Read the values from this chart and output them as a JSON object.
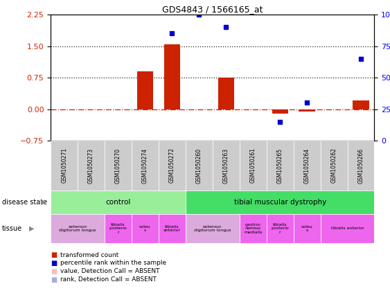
{
  "title": "GDS4843 / 1566165_at",
  "samples": [
    "GSM1050271",
    "GSM1050273",
    "GSM1050270",
    "GSM1050274",
    "GSM1050272",
    "GSM1050260",
    "GSM1050263",
    "GSM1050261",
    "GSM1050265",
    "GSM1050264",
    "GSM1050262",
    "GSM1050266"
  ],
  "bar_values": [
    0,
    0,
    0,
    0.9,
    1.55,
    0,
    0.75,
    0,
    -0.1,
    -0.05,
    0,
    0.2
  ],
  "dot_indices": [
    4,
    5,
    6,
    8,
    9,
    11
  ],
  "dot_pct_values": [
    85,
    100,
    90,
    15,
    30,
    65
  ],
  "bar_color": "#cc2200",
  "dot_color": "#0000cc",
  "ylim_left": [
    -0.75,
    2.25
  ],
  "ylim_right": [
    0,
    100
  ],
  "yticks_left": [
    -0.75,
    0,
    0.75,
    1.5,
    2.25
  ],
  "yticks_right": [
    0,
    25,
    50,
    75,
    100
  ],
  "hline_y": [
    0,
    0.75,
    1.5
  ],
  "hline_styles": [
    "dashdot",
    "dotted",
    "dotted"
  ],
  "hline_colors": [
    "#cc2200",
    "#222222",
    "#222222"
  ],
  "disease_groups": [
    {
      "label": "control",
      "start": 0,
      "end": 4,
      "color": "#99ee99"
    },
    {
      "label": "tibial muscular dystrophy",
      "start": 5,
      "end": 11,
      "color": "#44dd66"
    }
  ],
  "tissue_groups": [
    {
      "label": "extensor\ndigitorum longus",
      "start": 0,
      "end": 1,
      "color": "#ddaadd"
    },
    {
      "label": "tibialis\nposterio\nr",
      "start": 2,
      "end": 2,
      "color": "#ee66ee"
    },
    {
      "label": "soleu\ns",
      "start": 3,
      "end": 3,
      "color": "#ee66ee"
    },
    {
      "label": "tibialis\nanterior",
      "start": 4,
      "end": 4,
      "color": "#ee66ee"
    },
    {
      "label": "extensor\ndigitorum longus",
      "start": 5,
      "end": 6,
      "color": "#ddaadd"
    },
    {
      "label": "gastroc\nnemius\nmedialis",
      "start": 7,
      "end": 7,
      "color": "#ee66ee"
    },
    {
      "label": "tibialis\nposterio\nr",
      "start": 8,
      "end": 8,
      "color": "#ee66ee"
    },
    {
      "label": "soleu\ns",
      "start": 9,
      "end": 9,
      "color": "#ee66ee"
    },
    {
      "label": "tibialis anterior",
      "start": 10,
      "end": 11,
      "color": "#ee66ee"
    }
  ],
  "sample_box_color": "#cccccc",
  "plot_bg": "#ffffff",
  "legend_items": [
    {
      "color": "#cc2200",
      "label": "transformed count"
    },
    {
      "color": "#0000cc",
      "label": "percentile rank within the sample"
    },
    {
      "color": "#ffbbbb",
      "label": "value, Detection Call = ABSENT"
    },
    {
      "color": "#aaaadd",
      "label": "rank, Detection Call = ABSENT"
    }
  ]
}
